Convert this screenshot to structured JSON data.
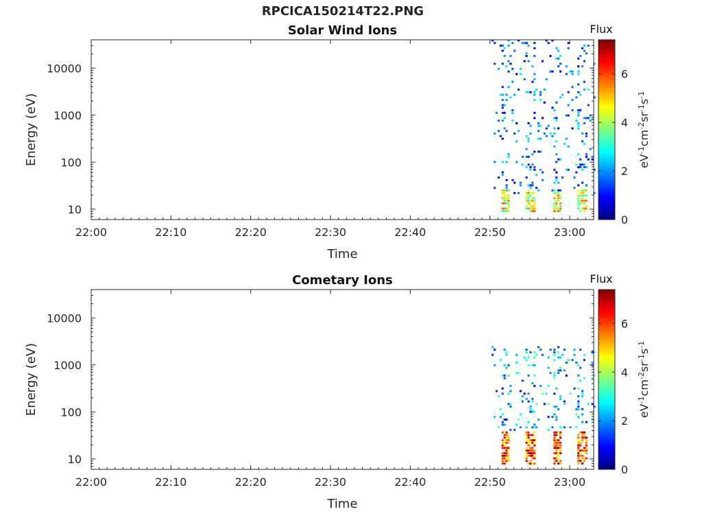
{
  "figure": {
    "title": "RPCICA150214T22.PNG"
  },
  "chart_data": [
    {
      "type": "heatmap",
      "title": "Solar Wind Ions",
      "xlabel": "Time",
      "ylabel": "Energy (eV)",
      "x_ticks": [
        "22:00",
        "22:10",
        "22:20",
        "22:30",
        "22:40",
        "22:50",
        "23:00"
      ],
      "xlim": [
        "22:00",
        "23:03"
      ],
      "y_scale": "log",
      "y_ticks": [
        10,
        100,
        1000,
        10000
      ],
      "ylim": [
        6,
        40000
      ],
      "colorbar": {
        "label": "Flux",
        "unit": "eV-1cm-2sr-1s-1",
        "ticks": [
          0,
          2,
          4,
          6
        ],
        "range": [
          0,
          7.4
        ],
        "colormap": "jet"
      },
      "bursts_minutes": [
        51.8,
        55.0,
        58.3,
        61.5
      ],
      "data_start_minute": 50.2,
      "data_end_minute": 63.0,
      "low_energy_band_eV": [
        8,
        27
      ],
      "low_energy_level": [
        3.0,
        5.8
      ],
      "high_energy_scatter_eV": [
        20,
        38000
      ],
      "high_energy_level": [
        0.8,
        2.8
      ]
    },
    {
      "type": "heatmap",
      "title": "Cometary Ions",
      "xlabel": "Time",
      "ylabel": "Energy (eV)",
      "x_ticks": [
        "22:00",
        "22:10",
        "22:20",
        "22:30",
        "22:40",
        "22:50",
        "23:00"
      ],
      "xlim": [
        "22:00",
        "23:03"
      ],
      "y_scale": "log",
      "y_ticks": [
        10,
        100,
        1000,
        10000
      ],
      "ylim": [
        6,
        40000
      ],
      "colorbar": {
        "label": "Flux",
        "unit": "eV-1cm-2sr-1s-1",
        "ticks": [
          0,
          2,
          4,
          6
        ],
        "range": [
          0,
          7.4
        ],
        "colormap": "jet"
      },
      "bursts_minutes": [
        51.8,
        55.0,
        58.3,
        61.5
      ],
      "data_start_minute": 50.2,
      "data_end_minute": 63.0,
      "low_energy_band_eV": [
        7,
        40
      ],
      "low_energy_level": [
        4.5,
        7.2
      ],
      "high_energy_scatter_eV": [
        40,
        2500
      ],
      "high_energy_level": [
        1.0,
        3.5
      ]
    }
  ]
}
